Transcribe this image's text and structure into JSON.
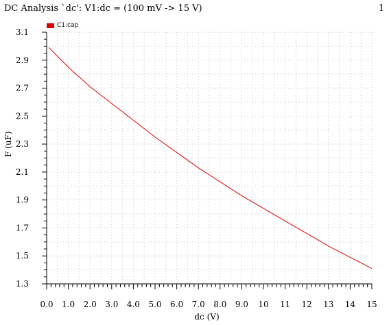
{
  "header": {
    "title": "DC Analysis `dc': V1:dc = (100 mV -> 15 V)",
    "page_number": "1"
  },
  "colors": {
    "series": "#e00000",
    "grid": "#c8c8c8",
    "axis": "#000000"
  },
  "chart_data": {
    "type": "line",
    "title": "DC Analysis `dc': V1:dc = (100 mV -> 15 V)",
    "xlabel": "dc (V)",
    "ylabel": "F (uF)",
    "xlim": [
      0,
      15
    ],
    "ylim": [
      1.3,
      3.1
    ],
    "grid": true,
    "legend_position": "top-left",
    "x_ticks": [
      "0.0",
      "1.0",
      "2.0",
      "3.0",
      "4.0",
      "5.0",
      "6.0",
      "7.0",
      "8.0",
      "9.0",
      "10",
      "11",
      "12",
      "13",
      "14",
      "15"
    ],
    "y_ticks": [
      "1.3",
      "1.5",
      "1.7",
      "1.9",
      "2.1",
      "2.3",
      "2.5",
      "2.7",
      "2.9",
      "3.1"
    ],
    "series": [
      {
        "name": "C1:cap",
        "color": "#e00000",
        "x": [
          0.1,
          1,
          2,
          3,
          4,
          5,
          6,
          7,
          8,
          9,
          10,
          11,
          12,
          13,
          14,
          15
        ],
        "y": [
          2.99,
          2.85,
          2.71,
          2.59,
          2.47,
          2.35,
          2.24,
          2.13,
          2.03,
          1.93,
          1.84,
          1.75,
          1.66,
          1.57,
          1.49,
          1.41
        ]
      }
    ]
  }
}
